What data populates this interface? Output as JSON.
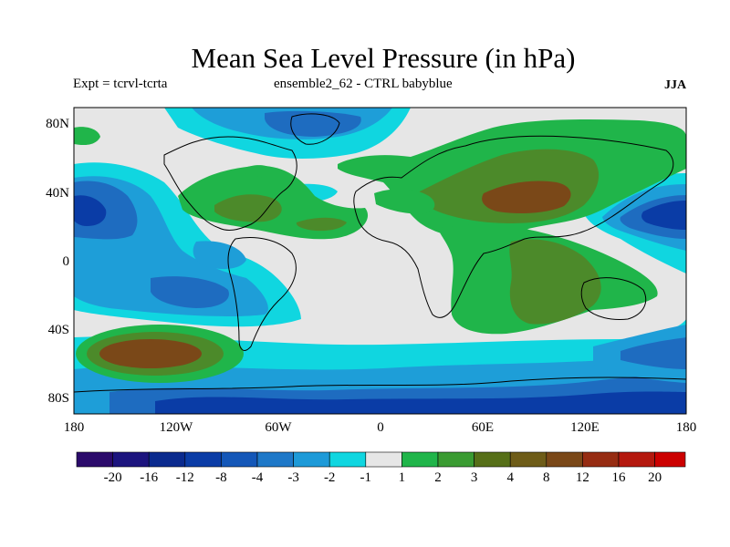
{
  "title": "Mean Sea Level Pressure (in hPa)",
  "experiment": "Expt = tcrvl-tcrta",
  "ensemble": "ensemble2_62 - CTRL babyblue",
  "season": "JJA",
  "axes": {
    "lon_labels": [
      "180",
      "120W",
      "60W",
      "0",
      "60E",
      "120E",
      "180"
    ],
    "lat_labels": [
      "80N",
      "40N",
      "0",
      "40S",
      "80S"
    ]
  },
  "colorbar": {
    "colors": [
      "#2b0a6b",
      "#1c147e",
      "#0a2a8e",
      "#0a3ca6",
      "#1457b8",
      "#1e78c8",
      "#1d9ad8",
      "#10d6e0",
      "#e6e6e6",
      "#20b54a",
      "#3a9b32",
      "#566f18",
      "#6e5c18",
      "#7a4818",
      "#962c12",
      "#b4180e",
      "#cc0000"
    ],
    "labels": [
      "-20",
      "-16",
      "-12",
      "-8",
      "-4",
      "-3",
      "-2",
      "-1",
      "1",
      "2",
      "3",
      "4",
      "8",
      "12",
      "16",
      "20"
    ]
  },
  "colors": {
    "neutral": "#e6e6e6",
    "cyan": "#10d6e0",
    "light_blue": "#1e9ed8",
    "mid_blue": "#1e6cc0",
    "dark_blue": "#0a3ca6",
    "navy": "#0a2a8e",
    "green": "#20b54a",
    "dark_green": "#4c8a2a",
    "brown": "#7a4818",
    "coast": "#000000"
  }
}
